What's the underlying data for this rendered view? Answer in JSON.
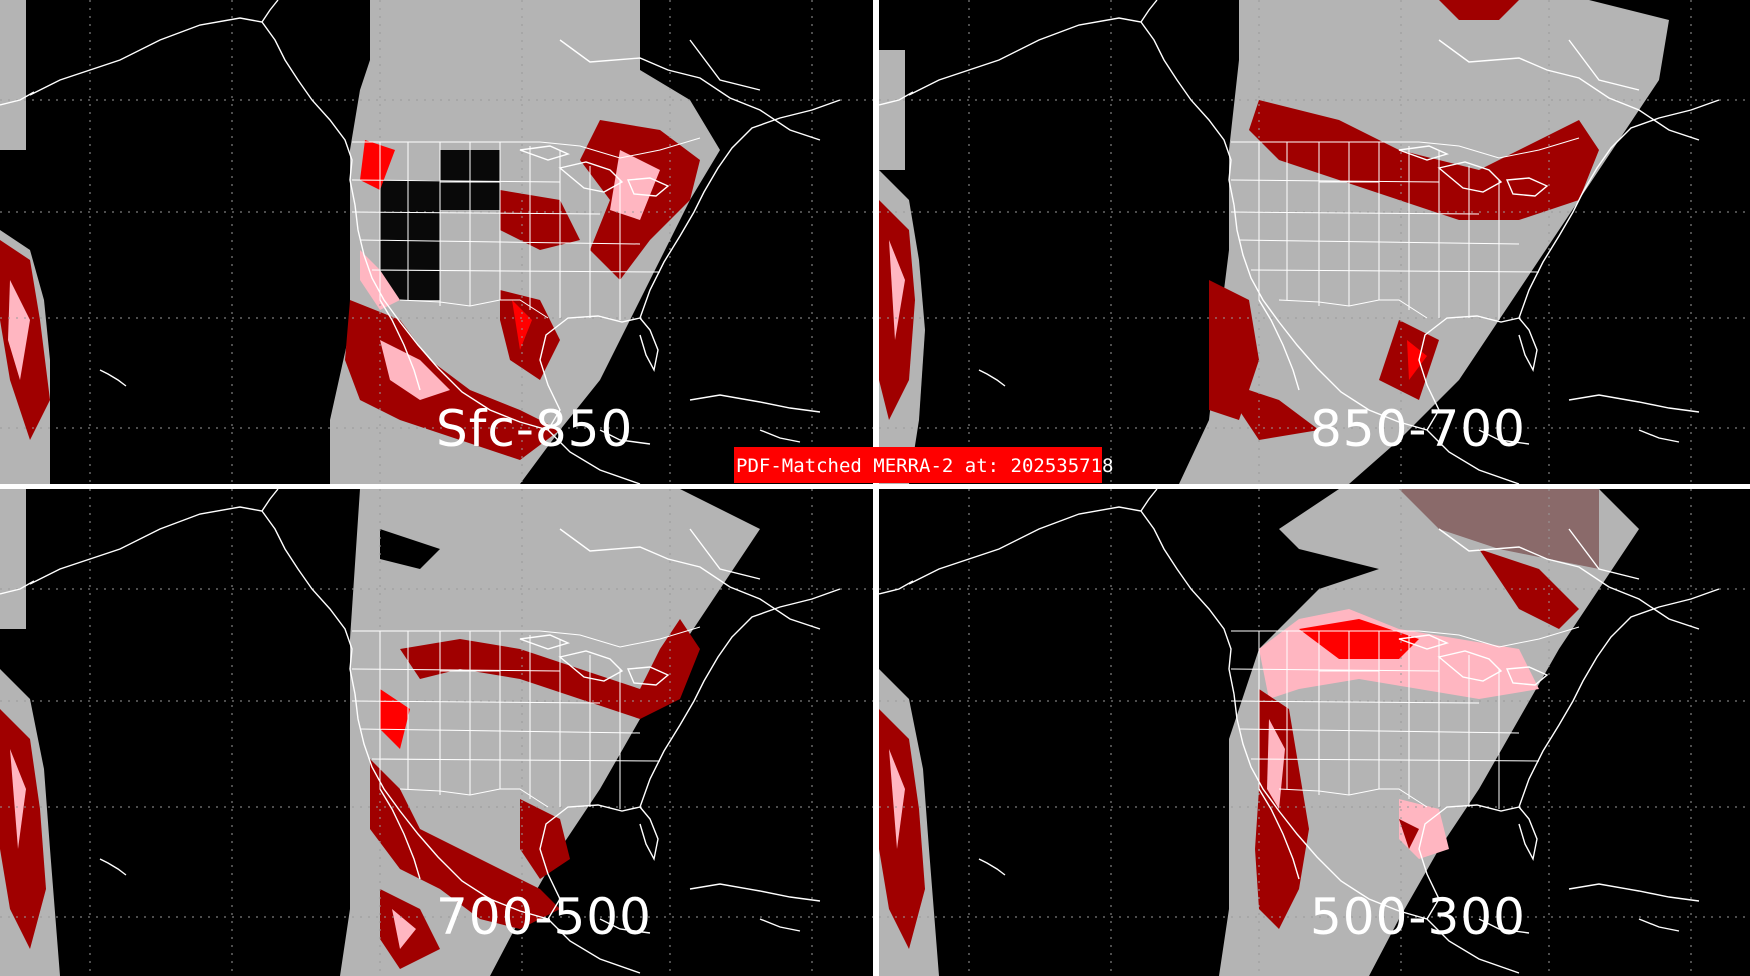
{
  "banner": {
    "text": "PDF-Matched MERRA-2 at: 202535718",
    "color": "#ff0000"
  },
  "panels": [
    {
      "label": "Sfc-850"
    },
    {
      "label": "850-700"
    },
    {
      "label": "700-500"
    },
    {
      "label": "500-300"
    }
  ],
  "colors": {
    "background": "#000000",
    "swath": "#b4b4b4",
    "dark_red": "#a00000",
    "red": "#ff0000",
    "pink": "#ffb6c1",
    "borders": "#ffffff",
    "grid": "#808080"
  }
}
